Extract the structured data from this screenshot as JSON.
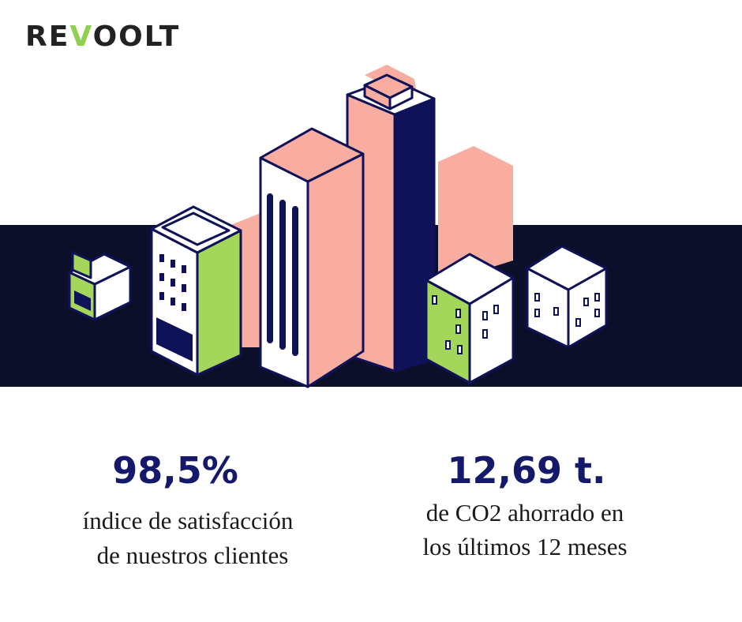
{
  "logo": "REVOOLT",
  "stats": [
    {
      "value": "98,5%",
      "lines": [
        "índice de satisfacción",
        "de nuestros clientes"
      ]
    },
    {
      "value": "12,69 t.",
      "lines": [
        "de CO2 ahorrado en",
        "los últimos 12 meses"
      ]
    }
  ]
}
